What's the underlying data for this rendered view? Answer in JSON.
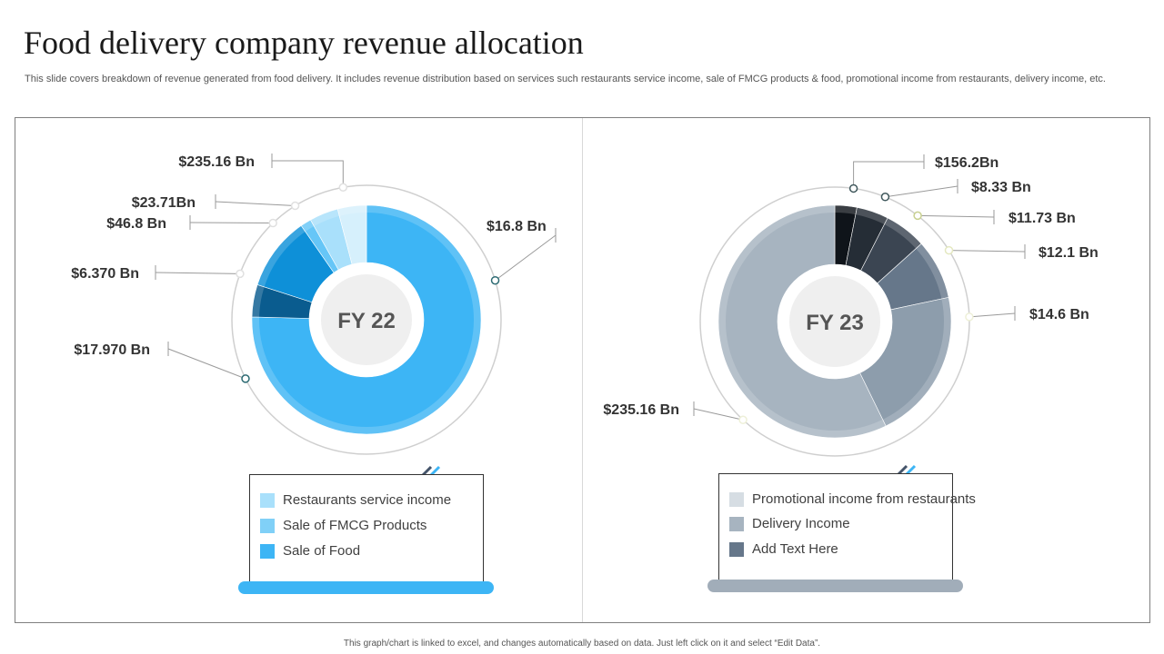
{
  "page": {
    "title": "Food delivery company revenue allocation",
    "subtitle": "This slide covers breakdown of revenue generated from food delivery. It includes revenue distribution based on services such restaurants service income, sale of FMCG products & food, promotional income from restaurants, delivery income, etc.",
    "footer": "This graph/chart is linked to excel, and changes automatically based on data. Just left click on it and select “Edit Data”."
  },
  "chart_data": [
    {
      "type": "donut",
      "center_label": "FY 22",
      "slices": [
        {
          "label": "$16.8 Bn",
          "color": "#3db5f5",
          "value": 297
        },
        {
          "label": "$17.970 Bn",
          "color": "#0a5c8f",
          "value": 18
        },
        {
          "label": "$6.370 Bn",
          "color": "#0e90d8",
          "value": 41
        },
        {
          "label": "$46.8 Bn",
          "color": "#66c6f7",
          "value": 6
        },
        {
          "label": "$23.71Bn",
          "color": "#a9e0fb",
          "value": 16
        },
        {
          "label": "$235.16 Bn",
          "color": "#d6f0fc",
          "value": 16
        }
      ],
      "legend": [
        {
          "label": "Restaurants service income",
          "color": "#a9e0fb"
        },
        {
          "label": "Sale of FMCG Products",
          "color": "#80d0f7"
        },
        {
          "label": "Sale of Food",
          "color": "#3db5f5"
        }
      ],
      "accent": "#3db5f5"
    },
    {
      "type": "donut",
      "center_label": "FY 23",
      "slices": [
        {
          "label": "$156.2Bn",
          "color": "#0f141a",
          "value": 11
        },
        {
          "label": "$8.33 Bn",
          "color": "#252d36",
          "value": 16
        },
        {
          "label": "$11.73 Bn",
          "color": "#3b4552",
          "value": 21
        },
        {
          "label": "$12.1 Bn",
          "color": "#66778a",
          "value": 30
        },
        {
          "label": "$14.6 Bn",
          "color": "#8d9dac",
          "value": 76
        },
        {
          "label": "$235.16 Bn",
          "color": "#a7b4c0",
          "value": 206
        }
      ],
      "legend": [
        {
          "label": "Promotional income from restaurants",
          "color": "#d6dde3"
        },
        {
          "label": "Delivery Income",
          "color": "#a7b4c0"
        },
        {
          "label": "Add Text Here",
          "color": "#66778a"
        }
      ],
      "accent": "#a1adb9"
    }
  ]
}
